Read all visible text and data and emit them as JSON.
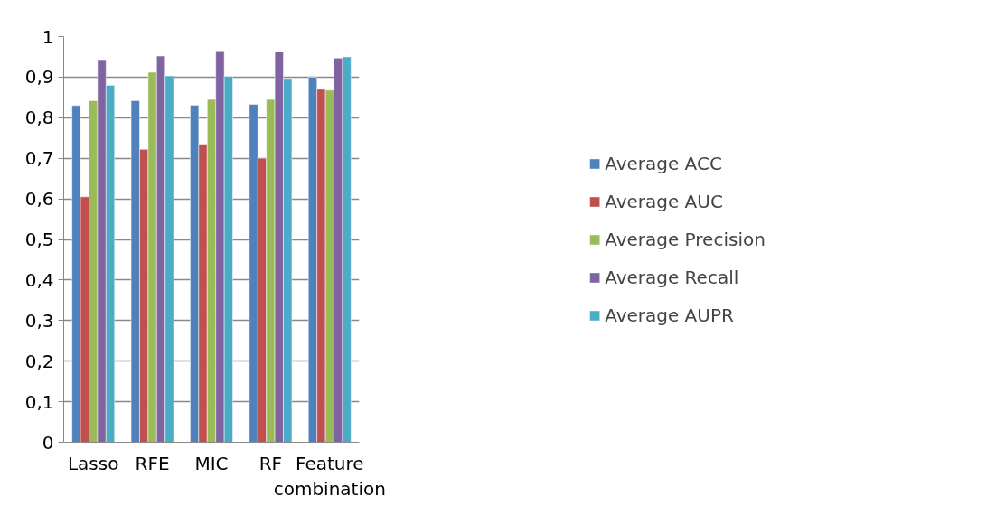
{
  "chart_data": {
    "type": "bar",
    "categories": [
      "Lasso",
      "RFE",
      "MIC",
      "RF",
      "Feature combination"
    ],
    "series": [
      {
        "name": "Average ACC",
        "color": "#4f81bd",
        "values": [
          0.83,
          0.842,
          0.831,
          0.833,
          0.9
        ]
      },
      {
        "name": "Average AUC",
        "color": "#c0504d",
        "values": [
          0.605,
          0.722,
          0.735,
          0.7,
          0.87
        ]
      },
      {
        "name": "Average Precision",
        "color": "#9bbb59",
        "values": [
          0.842,
          0.912,
          0.845,
          0.845,
          0.868
        ]
      },
      {
        "name": "Average Recall",
        "color": "#8064a2",
        "values": [
          0.943,
          0.952,
          0.965,
          0.963,
          0.947
        ]
      },
      {
        "name": "Average AUPR",
        "color": "#4bacc6",
        "values": [
          0.88,
          0.903,
          0.902,
          0.897,
          0.95
        ]
      }
    ],
    "ylim": [
      0,
      1
    ],
    "yticks": [
      0,
      {
        "value": 0.1,
        "label": "0,1"
      },
      {
        "value": 0.2,
        "label": "0,2"
      },
      {
        "value": 0.3,
        "label": "0,3"
      },
      {
        "value": 0.4,
        "label": "0,4"
      },
      {
        "value": 0.5,
        "label": "0,5"
      },
      {
        "value": 0.6,
        "label": "0,6"
      },
      {
        "value": 0.7,
        "label": "0,7"
      },
      {
        "value": 0.8,
        "label": "0,8"
      },
      {
        "value": 0.9,
        "label": "0,9"
      },
      1
    ],
    "grid": "y",
    "legend": "right"
  }
}
